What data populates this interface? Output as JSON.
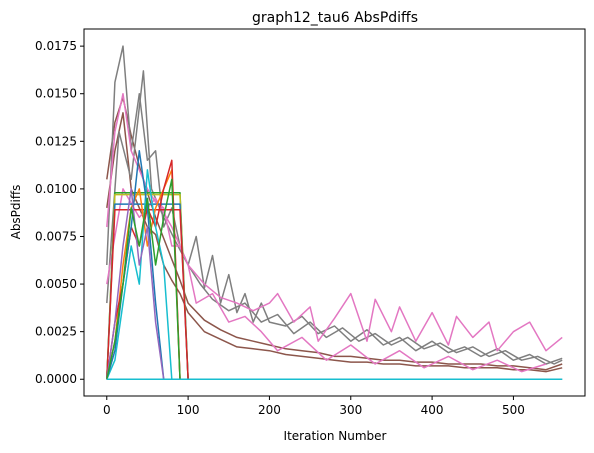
{
  "chart_data": {
    "type": "line",
    "title": "graph12_tau6 AbsPdiffs",
    "xlabel": "Iteration Number",
    "ylabel": "AbsPdiffs",
    "xlim": [
      -28,
      588
    ],
    "ylim": [
      -0.00088,
      0.0184
    ],
    "x_ticks": [
      0,
      100,
      200,
      300,
      400,
      500
    ],
    "y_ticks": [
      0.0,
      0.0025,
      0.005,
      0.0075,
      0.01,
      0.0125,
      0.015,
      0.0175
    ],
    "x_tick_labels": [
      "0",
      "100",
      "200",
      "300",
      "400",
      "500"
    ],
    "y_tick_labels": [
      "0.0000",
      "0.0025",
      "0.0050",
      "0.0075",
      "0.0100",
      "0.0125",
      "0.0150",
      "0.0175"
    ],
    "grid": false,
    "legend": "none",
    "palette": [
      "#1f77b4",
      "#ff7f0e",
      "#2ca02c",
      "#d62728",
      "#9467bd",
      "#8c564b",
      "#e377c2",
      "#7f7f7f",
      "#bcbd22",
      "#17becf"
    ],
    "series": [
      {
        "color": "#8c564b",
        "x": [
          0,
          10,
          20,
          30,
          40,
          50,
          60,
          70,
          80,
          90,
          100,
          120,
          140,
          160,
          180,
          200,
          220,
          240,
          260,
          280,
          300,
          320,
          340,
          360,
          380,
          400,
          420,
          440,
          460,
          480,
          500,
          520,
          540,
          560
        ],
        "y": [
          0.0105,
          0.0135,
          0.0148,
          0.0128,
          0.0112,
          0.0098,
          0.0085,
          0.0074,
          0.0063,
          0.0052,
          0.004,
          0.0031,
          0.0026,
          0.0022,
          0.002,
          0.0018,
          0.0016,
          0.0015,
          0.0014,
          0.0012,
          0.0012,
          0.0011,
          0.001,
          0.001,
          0.0009,
          0.0009,
          0.0008,
          0.0008,
          0.0008,
          0.0007,
          0.0007,
          0.0006,
          0.0005,
          0.0008
        ]
      },
      {
        "color": "#8c564b",
        "x": [
          0,
          10,
          20,
          30,
          40,
          50,
          60,
          70,
          80,
          90,
          100,
          120,
          140,
          160,
          180,
          200,
          220,
          240,
          260,
          280,
          300,
          320,
          340,
          360,
          380,
          400,
          420,
          440,
          460,
          480,
          500,
          520,
          540,
          560
        ],
        "y": [
          0.009,
          0.012,
          0.014,
          0.01,
          0.009,
          0.008,
          0.0076,
          0.006,
          0.0052,
          0.0045,
          0.0035,
          0.0025,
          0.0021,
          0.0017,
          0.0016,
          0.0015,
          0.0013,
          0.0012,
          0.0011,
          0.001,
          0.0009,
          0.0009,
          0.0008,
          0.0008,
          0.0007,
          0.0007,
          0.0007,
          0.0006,
          0.0006,
          0.0006,
          0.0005,
          0.0005,
          0.0004,
          0.0006
        ]
      },
      {
        "color": "#7f7f7f",
        "x": [
          0,
          10,
          20,
          30,
          40,
          50,
          60,
          70,
          80,
          90,
          100,
          110,
          120,
          130,
          140,
          150,
          160,
          170,
          180,
          190,
          200,
          220,
          240,
          260,
          280,
          300,
          320,
          340,
          360,
          380,
          400,
          420,
          440,
          460,
          480,
          500,
          520,
          540,
          560
        ],
        "y": [
          0.006,
          0.0156,
          0.0175,
          0.012,
          0.015,
          0.0115,
          0.012,
          0.008,
          0.009,
          0.007,
          0.006,
          0.0075,
          0.0048,
          0.0065,
          0.004,
          0.0055,
          0.0035,
          0.0045,
          0.003,
          0.004,
          0.003,
          0.0028,
          0.0033,
          0.0024,
          0.0028,
          0.002,
          0.0026,
          0.0018,
          0.0022,
          0.0015,
          0.002,
          0.0014,
          0.0017,
          0.0012,
          0.0016,
          0.001,
          0.0013,
          0.0008,
          0.0011
        ]
      },
      {
        "color": "#7f7f7f",
        "x": [
          0,
          15,
          30,
          45,
          55,
          70,
          85,
          100,
          115,
          130,
          150,
          170,
          190,
          210,
          230,
          250,
          270,
          290,
          310,
          330,
          350,
          370,
          390,
          410,
          430,
          450,
          470,
          490,
          510,
          530,
          550,
          560
        ],
        "y": [
          0.004,
          0.013,
          0.0105,
          0.0162,
          0.01,
          0.0085,
          0.0072,
          0.006,
          0.005,
          0.0042,
          0.0036,
          0.004,
          0.003,
          0.0034,
          0.0024,
          0.003,
          0.0022,
          0.0027,
          0.002,
          0.0024,
          0.0018,
          0.0022,
          0.0016,
          0.0019,
          0.0014,
          0.0017,
          0.0012,
          0.0015,
          0.001,
          0.0012,
          0.0008,
          0.001
        ]
      },
      {
        "color": "#e377c2",
        "x": [
          0,
          10,
          20,
          30,
          40,
          50,
          60,
          70,
          80,
          90,
          100,
          120,
          140,
          160,
          180,
          200,
          210,
          230,
          250,
          260,
          280,
          300,
          320,
          330,
          350,
          360,
          380,
          400,
          420,
          430,
          450,
          470,
          480,
          500,
          520,
          540,
          560
        ],
        "y": [
          0.008,
          0.013,
          0.015,
          0.012,
          0.011,
          0.01,
          0.0093,
          0.009,
          0.007,
          0.007,
          0.006,
          0.005,
          0.0043,
          0.004,
          0.0036,
          0.004,
          0.0045,
          0.003,
          0.0038,
          0.002,
          0.0032,
          0.0045,
          0.002,
          0.0042,
          0.0025,
          0.0038,
          0.002,
          0.0035,
          0.0018,
          0.0033,
          0.0022,
          0.003,
          0.0015,
          0.0025,
          0.003,
          0.0015,
          0.0022
        ]
      },
      {
        "color": "#e377c2",
        "x": [
          0,
          20,
          40,
          60,
          80,
          100,
          110,
          130,
          150,
          170,
          190,
          210,
          240,
          270,
          300,
          330,
          360,
          390,
          420,
          450,
          480,
          510,
          540
        ],
        "y": [
          0.005,
          0.01,
          0.0085,
          0.0095,
          0.008,
          0.006,
          0.004,
          0.0045,
          0.003,
          0.0033,
          0.0025,
          0.0015,
          0.0022,
          0.001,
          0.0018,
          0.0008,
          0.0015,
          0.0006,
          0.0012,
          0.0005,
          0.001,
          0.0004,
          0.0008
        ]
      },
      {
        "color": "#2ca02c",
        "x": [
          0,
          10,
          20,
          30,
          40,
          50,
          60,
          70,
          80,
          90,
          100
        ],
        "y": [
          0.0,
          0.0098,
          0.0098,
          0.0098,
          0.0098,
          0.0098,
          0.0098,
          0.0098,
          0.0098,
          0.0098,
          0.0
        ]
      },
      {
        "color": "#bcbd22",
        "x": [
          0,
          10,
          20,
          30,
          40,
          50,
          60,
          70,
          80,
          90,
          100
        ],
        "y": [
          0.0,
          0.0097,
          0.0097,
          0.0097,
          0.0097,
          0.0097,
          0.0097,
          0.0097,
          0.0097,
          0.0097,
          0.0
        ]
      },
      {
        "color": "#1f77b4",
        "x": [
          0,
          10,
          20,
          30,
          40,
          50,
          60,
          70,
          80,
          90,
          100
        ],
        "y": [
          0.0,
          0.0092,
          0.0092,
          0.0092,
          0.0092,
          0.0092,
          0.0092,
          0.0092,
          0.0092,
          0.0092,
          0.0
        ]
      },
      {
        "color": "#d62728",
        "x": [
          0,
          10,
          20,
          30,
          40,
          50,
          60,
          70,
          80,
          90,
          100
        ],
        "y": [
          0.0,
          0.0089,
          0.0089,
          0.0089,
          0.0089,
          0.0089,
          0.0089,
          0.0089,
          0.0089,
          0.0089,
          0.0
        ]
      },
      {
        "color": "#ff7f0e",
        "x": [
          0,
          10,
          20,
          30,
          40,
          50,
          60,
          70,
          80,
          90
        ],
        "y": [
          0.0,
          0.002,
          0.006,
          0.009,
          0.01,
          0.007,
          0.009,
          0.01,
          0.011,
          0.0
        ]
      },
      {
        "color": "#d62728",
        "x": [
          0,
          10,
          20,
          30,
          40,
          50,
          60,
          70,
          80,
          90
        ],
        "y": [
          0.0,
          0.003,
          0.005,
          0.008,
          0.007,
          0.009,
          0.008,
          0.01,
          0.0115,
          0.0
        ]
      },
      {
        "color": "#17becf",
        "x": [
          0,
          10,
          20,
          30,
          40,
          50,
          60,
          70,
          80
        ],
        "y": [
          0.0,
          0.001,
          0.004,
          0.007,
          0.005,
          0.011,
          0.008,
          0.006,
          0.0
        ]
      },
      {
        "color": "#1f77b4",
        "x": [
          0,
          10,
          20,
          30,
          40,
          50,
          60,
          70
        ],
        "y": [
          0.0,
          0.0015,
          0.005,
          0.008,
          0.012,
          0.009,
          0.004,
          0.0
        ]
      },
      {
        "color": "#9467bd",
        "x": [
          0,
          10,
          20,
          30,
          40,
          50,
          60,
          70
        ],
        "y": [
          0.0,
          0.003,
          0.007,
          0.01,
          0.006,
          0.008,
          0.003,
          0.0
        ]
      },
      {
        "color": "#2ca02c",
        "x": [
          0,
          10,
          20,
          30,
          40,
          50,
          60,
          70,
          80,
          90
        ],
        "y": [
          0.0,
          0.002,
          0.005,
          0.009,
          0.007,
          0.0095,
          0.006,
          0.0085,
          0.0105,
          0.0
        ]
      },
      {
        "color": "#7f7f7f",
        "x": [
          0,
          100,
          200,
          300,
          400,
          500,
          560
        ],
        "y": [
          0.0,
          0.0,
          0.0,
          0.0,
          0.0,
          0.0,
          0.0
        ]
      },
      {
        "color": "#17becf",
        "x": [
          0,
          100,
          200,
          300,
          400,
          500,
          560
        ],
        "y": [
          0.0,
          0.0,
          0.0,
          0.0,
          0.0,
          0.0,
          0.0
        ]
      }
    ]
  }
}
